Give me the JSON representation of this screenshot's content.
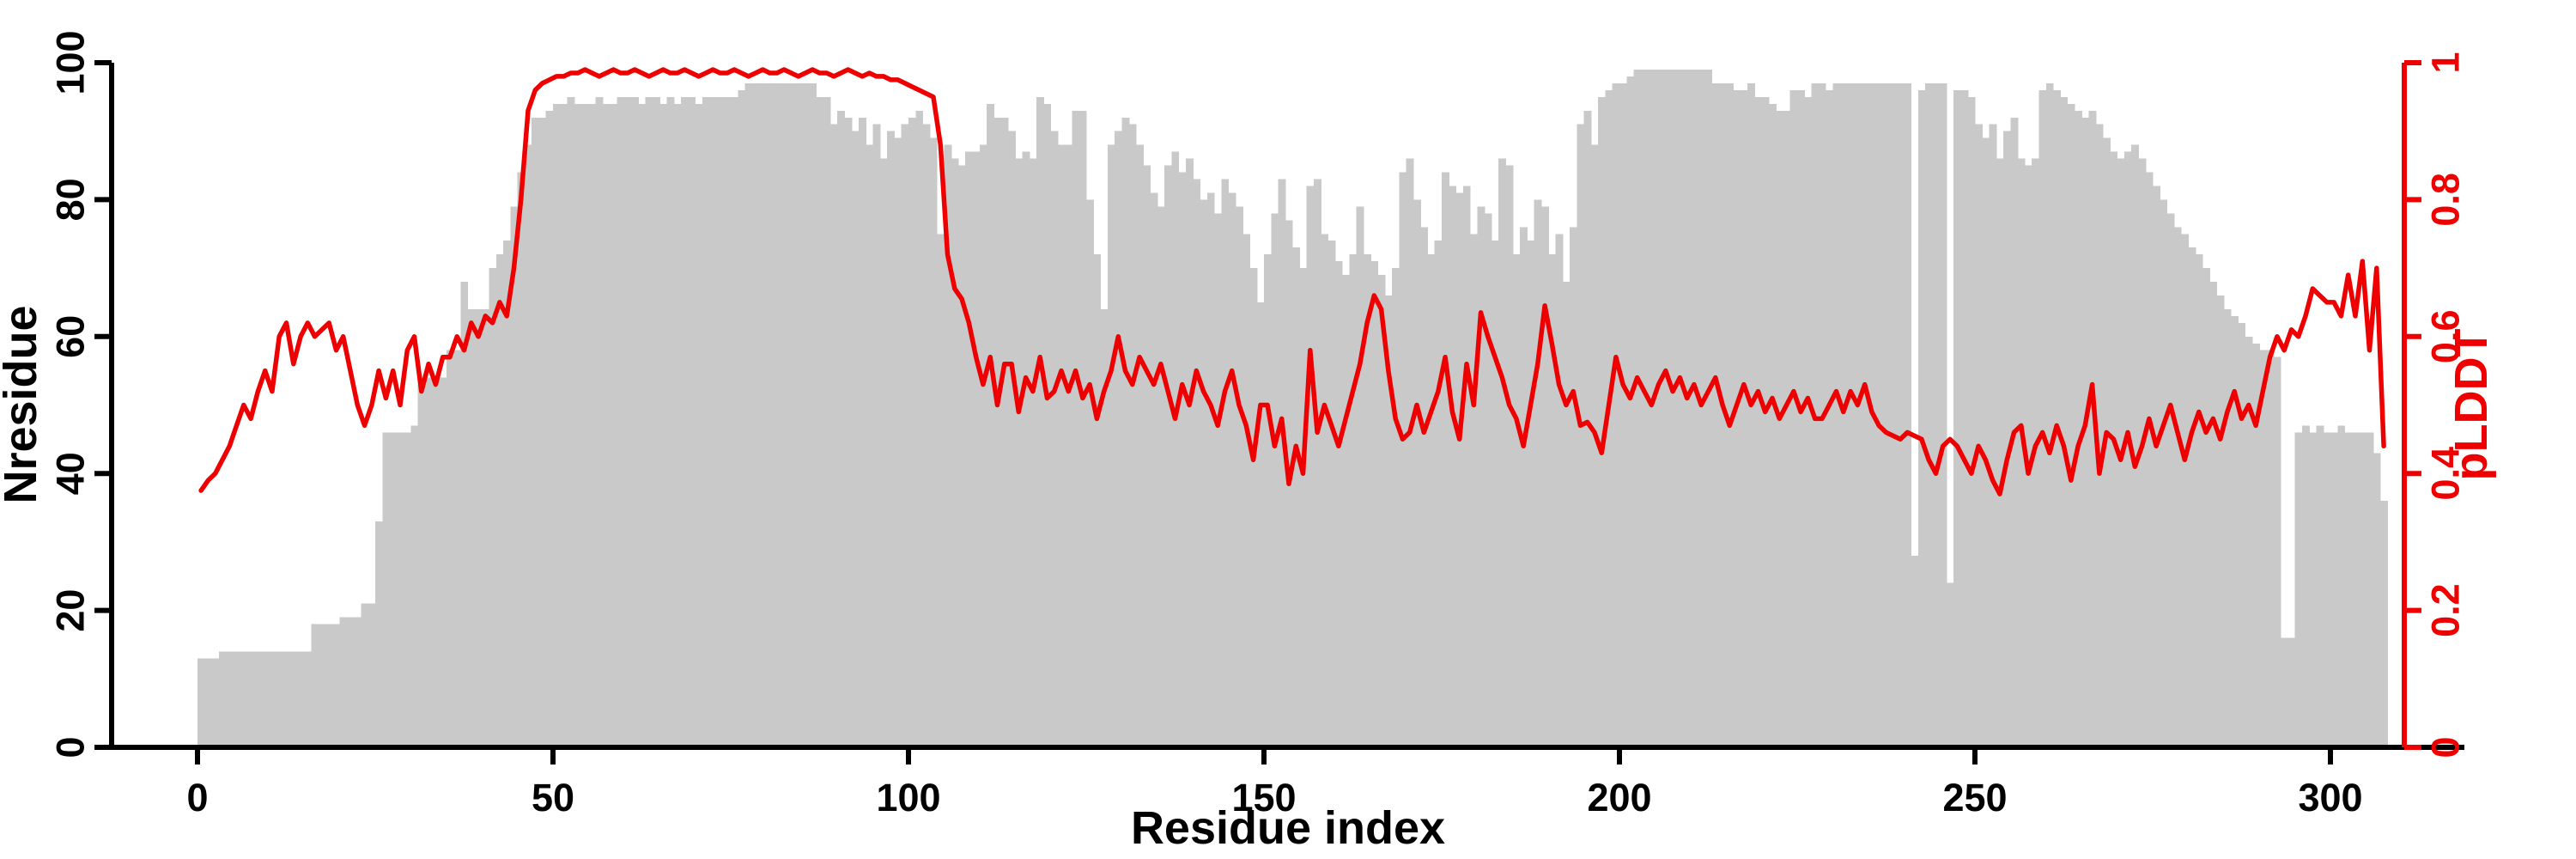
{
  "figure": {
    "kind": "dual-axis residue profile plot",
    "background": "#ffffff"
  },
  "chart_data": {
    "type": "bar+line",
    "title": "",
    "grid": false,
    "legend": "none",
    "x_axis": {
      "label": "Residue index",
      "tick_values": [
        0,
        50,
        100,
        150,
        200,
        250,
        300
      ],
      "tick_labels": [
        "0",
        "50",
        "100",
        "150",
        "200",
        "250",
        "300"
      ],
      "range": [
        -12,
        318
      ],
      "color": "#000000"
    },
    "left_y_axis": {
      "label": "Nresidue",
      "tick_values": [
        0,
        20,
        40,
        60,
        80,
        100
      ],
      "tick_labels": [
        "0",
        "20",
        "40",
        "60",
        "80",
        "100"
      ],
      "range": [
        0,
        100
      ],
      "color": "#000000"
    },
    "right_y_axis": {
      "label": "pLDDT",
      "tick_values": [
        0,
        0.2,
        0.4,
        0.6,
        0.8,
        1
      ],
      "tick_labels": [
        "0",
        "0.2",
        "0.4",
        "0.6",
        "0.8",
        "1"
      ],
      "range": [
        0,
        1
      ],
      "color": "#ee0000"
    },
    "x_start": 0,
    "x_step": 1,
    "bar_series": {
      "name": "Nresidue",
      "color": "#c9c9c9",
      "values": [
        13,
        13,
        13,
        14,
        14,
        14,
        14,
        14,
        14,
        14,
        14,
        14,
        14,
        14,
        14,
        14,
        18,
        18,
        18,
        18,
        19,
        19,
        19,
        21,
        21,
        33,
        46,
        46,
        46,
        46,
        47,
        53,
        54,
        54,
        54,
        58,
        58,
        68,
        64,
        64,
        64,
        70,
        72,
        74,
        79,
        84,
        88,
        92,
        92,
        93,
        94,
        94,
        95,
        94,
        94,
        94,
        95,
        94,
        94,
        95,
        95,
        95,
        94,
        95,
        95,
        94,
        95,
        94,
        95,
        95,
        94,
        95,
        95,
        95,
        95,
        95,
        96,
        97,
        97,
        97,
        97,
        97,
        97,
        97,
        97,
        97,
        97,
        95,
        95,
        91,
        93,
        92,
        90,
        92,
        88,
        91,
        86,
        90,
        89,
        91,
        92,
        93,
        91,
        89,
        75,
        88,
        86,
        85,
        87,
        87,
        88,
        94,
        92,
        92,
        90,
        86,
        87,
        86,
        95,
        94,
        90,
        88,
        88,
        93,
        93,
        80,
        72,
        64,
        88,
        90,
        92,
        91,
        88,
        85,
        81,
        79,
        85,
        87,
        84,
        86,
        83,
        80,
        81,
        78,
        83,
        81,
        79,
        75,
        70,
        65,
        72,
        78,
        83,
        77,
        73,
        70,
        82,
        83,
        75,
        74,
        71,
        69,
        72,
        79,
        72,
        71,
        69,
        66,
        70,
        84,
        86,
        80,
        76,
        72,
        74,
        84,
        82,
        81,
        82,
        75,
        79,
        78,
        74,
        86,
        85,
        72,
        76,
        74,
        80,
        79,
        72,
        75,
        68,
        76,
        91,
        93,
        88,
        95,
        96,
        97,
        97,
        98,
        99,
        99,
        99,
        99,
        99,
        99,
        99,
        99,
        99,
        99,
        99,
        97,
        97,
        97,
        96,
        96,
        97,
        95,
        95,
        94,
        93,
        93,
        96,
        96,
        95,
        97,
        97,
        96,
        97,
        97,
        97,
        97,
        97,
        97,
        97,
        97,
        97,
        97,
        97,
        28,
        96,
        97,
        97,
        97,
        24,
        96,
        96,
        95,
        91,
        89,
        91,
        86,
        90,
        92,
        86,
        85,
        86,
        96,
        97,
        96,
        95,
        94,
        93,
        92,
        93,
        91,
        89,
        87,
        86,
        87,
        88,
        86,
        84,
        82,
        80,
        78,
        76,
        75,
        73,
        72,
        70,
        68,
        66,
        64,
        63,
        62,
        60,
        59,
        58,
        58,
        57,
        16,
        16,
        46,
        47,
        46,
        47,
        46,
        46,
        47,
        46,
        46,
        46,
        46,
        43,
        36
      ]
    },
    "line_series": {
      "name": "pLDDT",
      "color": "#ee0000",
      "stroke_width": 5.5,
      "values": [
        0.375,
        0.39,
        0.4,
        0.42,
        0.44,
        0.47,
        0.5,
        0.48,
        0.52,
        0.55,
        0.52,
        0.6,
        0.62,
        0.56,
        0.6,
        0.62,
        0.6,
        0.61,
        0.62,
        0.58,
        0.6,
        0.55,
        0.5,
        0.47,
        0.5,
        0.55,
        0.51,
        0.55,
        0.5,
        0.58,
        0.6,
        0.52,
        0.56,
        0.53,
        0.57,
        0.57,
        0.6,
        0.58,
        0.62,
        0.6,
        0.63,
        0.62,
        0.65,
        0.63,
        0.7,
        0.8,
        0.93,
        0.96,
        0.97,
        0.975,
        0.98,
        0.98,
        0.985,
        0.985,
        0.99,
        0.985,
        0.98,
        0.985,
        0.99,
        0.985,
        0.985,
        0.99,
        0.985,
        0.98,
        0.985,
        0.99,
        0.985,
        0.985,
        0.99,
        0.985,
        0.98,
        0.985,
        0.99,
        0.985,
        0.985,
        0.99,
        0.985,
        0.98,
        0.985,
        0.99,
        0.985,
        0.985,
        0.99,
        0.985,
        0.98,
        0.985,
        0.99,
        0.985,
        0.985,
        0.98,
        0.985,
        0.99,
        0.985,
        0.98,
        0.985,
        0.98,
        0.98,
        0.975,
        0.975,
        0.97,
        0.965,
        0.96,
        0.955,
        0.95,
        0.88,
        0.72,
        0.67,
        0.655,
        0.62,
        0.57,
        0.53,
        0.57,
        0.5,
        0.56,
        0.56,
        0.49,
        0.54,
        0.52,
        0.57,
        0.51,
        0.52,
        0.55,
        0.52,
        0.55,
        0.51,
        0.53,
        0.48,
        0.52,
        0.55,
        0.6,
        0.55,
        0.53,
        0.57,
        0.55,
        0.53,
        0.56,
        0.52,
        0.48,
        0.53,
        0.5,
        0.55,
        0.52,
        0.5,
        0.47,
        0.52,
        0.55,
        0.5,
        0.47,
        0.42,
        0.5,
        0.5,
        0.44,
        0.48,
        0.385,
        0.44,
        0.4,
        0.58,
        0.46,
        0.5,
        0.47,
        0.44,
        0.48,
        0.52,
        0.56,
        0.62,
        0.66,
        0.64,
        0.55,
        0.48,
        0.45,
        0.46,
        0.5,
        0.46,
        0.49,
        0.52,
        0.57,
        0.49,
        0.45,
        0.56,
        0.5,
        0.635,
        0.6,
        0.57,
        0.54,
        0.5,
        0.48,
        0.44,
        0.5,
        0.56,
        0.645,
        0.59,
        0.53,
        0.5,
        0.52,
        0.47,
        0.475,
        0.46,
        0.43,
        0.5,
        0.57,
        0.53,
        0.51,
        0.54,
        0.52,
        0.5,
        0.53,
        0.55,
        0.52,
        0.54,
        0.51,
        0.53,
        0.5,
        0.52,
        0.54,
        0.5,
        0.47,
        0.5,
        0.53,
        0.5,
        0.52,
        0.49,
        0.51,
        0.48,
        0.5,
        0.52,
        0.49,
        0.51,
        0.48,
        0.48,
        0.5,
        0.52,
        0.49,
        0.52,
        0.5,
        0.53,
        0.49,
        0.47,
        0.46,
        0.455,
        0.45,
        0.46,
        0.455,
        0.45,
        0.42,
        0.4,
        0.44,
        0.45,
        0.44,
        0.42,
        0.4,
        0.44,
        0.42,
        0.39,
        0.37,
        0.42,
        0.46,
        0.47,
        0.4,
        0.44,
        0.46,
        0.43,
        0.47,
        0.44,
        0.39,
        0.44,
        0.47,
        0.53,
        0.4,
        0.46,
        0.45,
        0.42,
        0.46,
        0.41,
        0.44,
        0.48,
        0.44,
        0.47,
        0.5,
        0.46,
        0.42,
        0.46,
        0.49,
        0.46,
        0.48,
        0.45,
        0.49,
        0.52,
        0.48,
        0.5,
        0.47,
        0.52,
        0.57,
        0.6,
        0.58,
        0.61,
        0.6,
        0.63,
        0.67,
        0.66,
        0.65,
        0.65,
        0.63,
        0.69,
        0.63,
        0.71,
        0.58,
        0.7,
        0.44
      ]
    }
  }
}
